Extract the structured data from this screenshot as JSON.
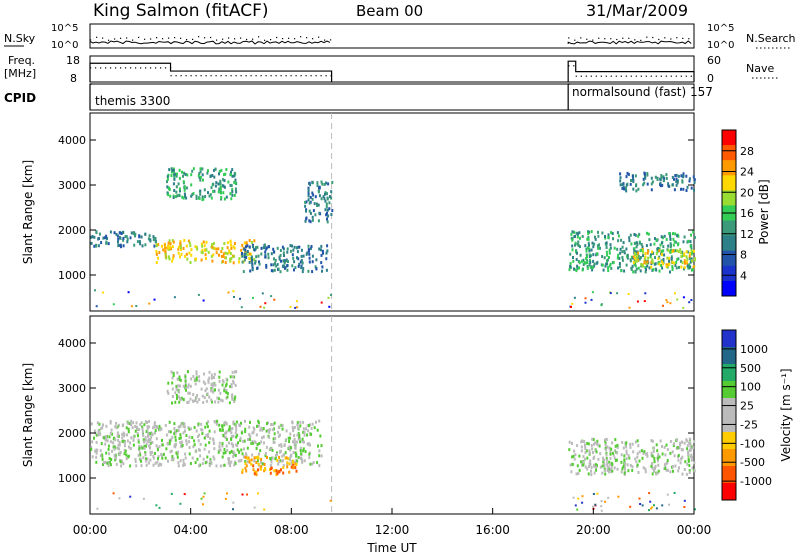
{
  "header": {
    "station": "King Salmon (fitACF)",
    "beam": "Beam 00",
    "date": "31/Mar/2009"
  },
  "noise_panel": {
    "left_label": "N.Sky",
    "right_label": "N.Search",
    "left_ticks": [
      "10^5",
      "10^0"
    ],
    "right_ticks": [
      "10^5",
      "10^0"
    ]
  },
  "freq_panel": {
    "left_label_1": "Freq.",
    "left_label_2": "[MHz]",
    "right_label": "Nave",
    "left_ticks": [
      "18",
      "8"
    ],
    "right_ticks": [
      "60",
      "0"
    ]
  },
  "cpid_panel": {
    "label": "CPID",
    "modes": [
      {
        "name": "themis",
        "id": "3300",
        "start": 0.0,
        "end": 9.6
      },
      {
        "name": "normalsound (fast)",
        "id": "157",
        "start": 19.0,
        "end": 24.0
      }
    ]
  },
  "power_panel": {
    "ylabel": "Slant Range [km]",
    "colorbar_label": "Power [dB]",
    "colorbar_ticks": [
      "28",
      "24",
      "20",
      "16",
      "12",
      "8",
      "4"
    ],
    "colorbar_colors": [
      "#ff0000",
      "#ff5a00",
      "#ff9900",
      "#ffd800",
      "#99dd33",
      "#33cc55",
      "#3a9a7a",
      "#2d7f88",
      "#2255aa",
      "#1a33cc",
      "#0000ff"
    ]
  },
  "velocity_panel": {
    "ylabel": "Slant Range [km]",
    "colorbar_label": "Velocity  [m s⁻¹]",
    "colorbar_ticks": [
      "1000",
      "500",
      "100",
      "25",
      "-25",
      "-100",
      "-500",
      "-1000"
    ],
    "colorbar_colors": [
      "#2233cc",
      "#226688",
      "#22aa66",
      "#55cc33",
      "#bbbbbb",
      "#bbbbbb",
      "#ffcc00",
      "#ff9900",
      "#ff5500",
      "#ff0000"
    ]
  },
  "x_axis": {
    "label": "Time UT",
    "ticks": [
      "00:00",
      "04:00",
      "08:00",
      "12:00",
      "16:00",
      "20:00",
      "00:00"
    ]
  },
  "chart_data": {
    "type": "heatmap",
    "xlim": [
      0,
      24
    ],
    "ylim": [
      200,
      4600
    ],
    "y_ticks": [
      "1000",
      "2000",
      "3000",
      "4000"
    ],
    "data_gap": [
      9.6,
      19.0
    ],
    "power_regions": [
      {
        "x": [
          0.0,
          2.6
        ],
        "y": [
          1650,
          2000
        ],
        "level": 8
      },
      {
        "x": [
          2.6,
          6.5
        ],
        "y": [
          1300,
          1800
        ],
        "level": 20
      },
      {
        "x": [
          3.0,
          5.8
        ],
        "y": [
          2700,
          3400
        ],
        "level": 12
      },
      {
        "x": [
          6.0,
          9.4
        ],
        "y": [
          1100,
          1700
        ],
        "level": 8
      },
      {
        "x": [
          8.5,
          9.6
        ],
        "y": [
          2200,
          3100
        ],
        "level": 8
      },
      {
        "x": [
          19.0,
          24.0
        ],
        "y": [
          1100,
          2000
        ],
        "level": 12
      },
      {
        "x": [
          21.5,
          24.0
        ],
        "y": [
          1200,
          1600
        ],
        "level": 20
      },
      {
        "x": [
          21.0,
          24.0
        ],
        "y": [
          2900,
          3300
        ],
        "level": 8
      }
    ],
    "velocity_regions": [
      {
        "x": [
          0.0,
          9.2
        ],
        "y": [
          1300,
          2300
        ],
        "level": 0
      },
      {
        "x": [
          6.0,
          8.2
        ],
        "y": [
          1100,
          1500
        ],
        "level": -100
      },
      {
        "x": [
          3.0,
          5.8
        ],
        "y": [
          2700,
          3400
        ],
        "level": 0
      },
      {
        "x": [
          19.0,
          24.0
        ],
        "y": [
          1100,
          1900
        ],
        "level": 0
      }
    ],
    "freq_mhz": [
      {
        "x": [
          0.0,
          3.2
        ],
        "value": 15.2
      },
      {
        "x": [
          3.2,
          9.6
        ],
        "value": 12.2
      },
      {
        "x": [
          19.0,
          19.3
        ],
        "value": 16.0
      },
      {
        "x": [
          19.3,
          24.0
        ],
        "value": 12.0
      }
    ]
  }
}
